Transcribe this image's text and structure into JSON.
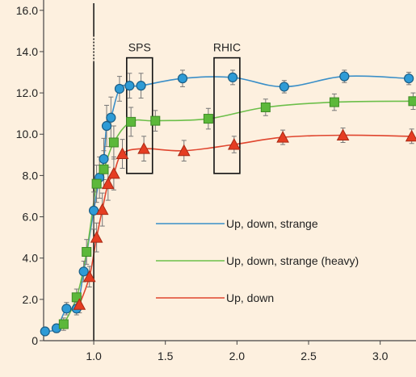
{
  "chart_data": {
    "type": "line",
    "xlim": [
      0.65,
      3.25
    ],
    "ylim": [
      0,
      16.5
    ],
    "x_ticks": [
      "1.0",
      "1.5",
      "2.0",
      "2.5",
      "3.0"
    ],
    "x_tick_values": [
      1.0,
      1.5,
      2.0,
      2.5,
      3.0
    ],
    "y_ticks": [
      "0",
      "2.0",
      "4.0",
      "6.0",
      "8.0",
      "10.0",
      "12.0",
      "14.0",
      "16.0"
    ],
    "y_tick_values": [
      0,
      2,
      4,
      6,
      8,
      10,
      12,
      14,
      16
    ],
    "grid": false,
    "vertical_line_x": 1.0,
    "annotations": [
      {
        "text": "SPS",
        "x_range": [
          1.23,
          1.41
        ],
        "y_range": [
          8.1,
          13.7
        ]
      },
      {
        "text": "RHIC",
        "x_range": [
          1.84,
          2.02
        ],
        "y_range": [
          8.1,
          13.7
        ]
      }
    ],
    "legend_placement": "center-right",
    "series": [
      {
        "name": "Up, down, strange",
        "color": "#3a8fc8",
        "marker": "circle",
        "points": [
          {
            "x": 0.66,
            "y": 0.45,
            "err": 0.2
          },
          {
            "x": 0.74,
            "y": 0.6,
            "err": 0.2
          },
          {
            "x": 0.81,
            "y": 1.55,
            "err": 0.3
          },
          {
            "x": 0.88,
            "y": 1.55,
            "err": 0.3
          },
          {
            "x": 0.93,
            "y": 3.35,
            "err": 0.5
          },
          {
            "x": 1.0,
            "y": 6.3,
            "err": 0.9
          },
          {
            "x": 1.04,
            "y": 7.9,
            "err": 1.0
          },
          {
            "x": 1.07,
            "y": 8.8,
            "err": 1.0
          },
          {
            "x": 1.09,
            "y": 10.4,
            "err": 1.0
          },
          {
            "x": 1.12,
            "y": 10.8,
            "err": 1.0
          },
          {
            "x": 1.18,
            "y": 12.2,
            "err": 0.6
          },
          {
            "x": 1.25,
            "y": 12.35,
            "err": 0.6
          },
          {
            "x": 1.33,
            "y": 12.35,
            "err": 0.6
          },
          {
            "x": 1.62,
            "y": 12.7,
            "err": 0.4
          },
          {
            "x": 1.97,
            "y": 12.75,
            "err": 0.35
          },
          {
            "x": 2.33,
            "y": 12.3,
            "err": 0.3
          },
          {
            "x": 2.75,
            "y": 12.8,
            "err": 0.3
          },
          {
            "x": 3.2,
            "y": 12.7,
            "err": 0.3
          }
        ]
      },
      {
        "name": "Up, down, strange (heavy)",
        "color": "#6cbf4a",
        "marker": "square",
        "points": [
          {
            "x": 0.79,
            "y": 0.8,
            "err": 0.3
          },
          {
            "x": 0.88,
            "y": 2.1,
            "err": 0.4
          },
          {
            "x": 0.95,
            "y": 4.3,
            "err": 0.6
          },
          {
            "x": 1.02,
            "y": 7.6,
            "err": 0.9
          },
          {
            "x": 1.07,
            "y": 8.3,
            "err": 0.9
          },
          {
            "x": 1.14,
            "y": 9.6,
            "err": 0.8
          },
          {
            "x": 1.26,
            "y": 10.6,
            "err": 0.7
          },
          {
            "x": 1.43,
            "y": 10.65,
            "err": 0.5
          },
          {
            "x": 1.8,
            "y": 10.75,
            "err": 0.5
          },
          {
            "x": 2.2,
            "y": 11.3,
            "err": 0.4
          },
          {
            "x": 2.68,
            "y": 11.55,
            "err": 0.4
          },
          {
            "x": 3.23,
            "y": 11.6,
            "err": 0.4
          }
        ]
      },
      {
        "name": "Up, down",
        "color": "#e0452e",
        "marker": "triangle",
        "points": [
          {
            "x": 0.9,
            "y": 1.75,
            "err": 0.4
          },
          {
            "x": 0.97,
            "y": 3.1,
            "err": 0.5
          },
          {
            "x": 1.02,
            "y": 5.0,
            "err": 0.7
          },
          {
            "x": 1.06,
            "y": 6.35,
            "err": 0.8
          },
          {
            "x": 1.1,
            "y": 7.6,
            "err": 0.8
          },
          {
            "x": 1.14,
            "y": 8.1,
            "err": 0.8
          },
          {
            "x": 1.2,
            "y": 9.05,
            "err": 0.7
          },
          {
            "x": 1.35,
            "y": 9.3,
            "err": 0.6
          },
          {
            "x": 1.63,
            "y": 9.2,
            "err": 0.5
          },
          {
            "x": 1.98,
            "y": 9.5,
            "err": 0.4
          },
          {
            "x": 2.32,
            "y": 9.85,
            "err": 0.35
          },
          {
            "x": 2.74,
            "y": 9.95,
            "err": 0.35
          },
          {
            "x": 3.22,
            "y": 9.9,
            "err": 0.35
          }
        ]
      }
    ]
  }
}
